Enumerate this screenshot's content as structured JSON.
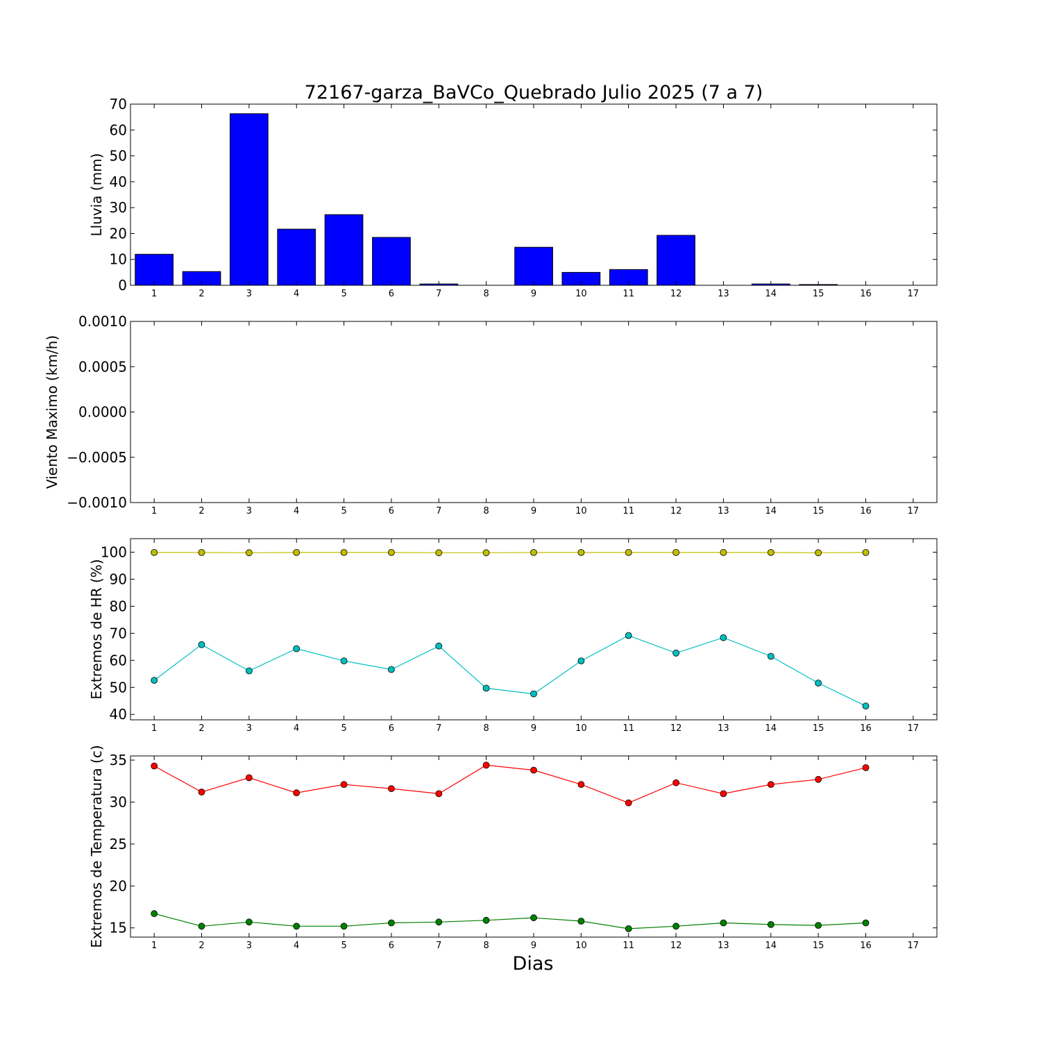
{
  "figure": {
    "title": "72167-garza_BaVCo_Quebrado Julio 2025  (7 a 7)",
    "xlabel": "Dias"
  },
  "chart_data": [
    {
      "type": "bar",
      "ylabel": "Lluvia (mm)",
      "xlim": [
        0.5,
        17.5
      ],
      "ylim": [
        0,
        70
      ],
      "yticks": [
        0,
        10,
        20,
        30,
        40,
        50,
        60,
        70
      ],
      "ytick_labels": [
        "0",
        "10",
        "20",
        "30",
        "40",
        "50",
        "60",
        "70"
      ],
      "xticks": [
        1,
        2,
        3,
        4,
        5,
        6,
        7,
        8,
        9,
        10,
        11,
        12,
        13,
        14,
        15,
        16,
        17
      ],
      "categories": [
        1,
        2,
        3,
        4,
        5,
        6,
        7,
        8,
        9,
        10,
        11,
        12,
        13,
        14,
        15,
        16
      ],
      "values": [
        12.0,
        5.3,
        66.3,
        21.7,
        27.3,
        18.5,
        0.5,
        0.0,
        14.7,
        5.0,
        6.1,
        19.3,
        0.0,
        0.5,
        0.3,
        0.0
      ],
      "color": "#0000ff",
      "grid": false
    },
    {
      "type": "line",
      "ylabel": "Viento Maximo (km/h)",
      "xlim": [
        0.5,
        17.5
      ],
      "ylim": [
        -0.001,
        0.001
      ],
      "yticks": [
        -0.001,
        -0.0005,
        0.0,
        0.0005,
        0.001
      ],
      "ytick_labels": [
        "−0.0010",
        "−0.0005",
        "0.0000",
        "0.0005",
        "0.0010"
      ],
      "xticks": [
        1,
        2,
        3,
        4,
        5,
        6,
        7,
        8,
        9,
        10,
        11,
        12,
        13,
        14,
        15,
        16,
        17
      ],
      "series": [],
      "grid": false
    },
    {
      "type": "line",
      "ylabel": "Extremos de HR (%)",
      "xlim": [
        0.5,
        17.5
      ],
      "ylim": [
        38,
        105
      ],
      "yticks": [
        40,
        50,
        60,
        70,
        80,
        90,
        100
      ],
      "ytick_labels": [
        "40",
        "50",
        "60",
        "70",
        "80",
        "90",
        "100"
      ],
      "xticks": [
        1,
        2,
        3,
        4,
        5,
        6,
        7,
        8,
        9,
        10,
        11,
        12,
        13,
        14,
        15,
        16,
        17
      ],
      "x": [
        1,
        2,
        3,
        4,
        5,
        6,
        7,
        8,
        9,
        10,
        11,
        12,
        13,
        14,
        15,
        16
      ],
      "series": [
        {
          "color": "#bfbf00",
          "values": [
            99.9,
            99.9,
            99.8,
            99.9,
            99.9,
            99.9,
            99.8,
            99.8,
            99.9,
            99.9,
            99.9,
            99.9,
            99.9,
            99.9,
            99.8,
            99.9
          ]
        },
        {
          "color": "#00bfbf",
          "values": [
            52.6,
            65.8,
            56.1,
            64.3,
            59.8,
            56.6,
            65.3,
            49.7,
            47.6,
            59.8,
            69.2,
            62.7,
            68.4,
            61.5,
            51.6,
            43.1
          ]
        }
      ],
      "grid": false
    },
    {
      "type": "line",
      "ylabel": "Extremos de Temperatura (c)",
      "xlim": [
        0.5,
        17.5
      ],
      "ylim": [
        13.9,
        35.5
      ],
      "yticks": [
        15,
        20,
        25,
        30,
        35
      ],
      "ytick_labels": [
        "15",
        "20",
        "25",
        "30",
        "35"
      ],
      "xticks": [
        1,
        2,
        3,
        4,
        5,
        6,
        7,
        8,
        9,
        10,
        11,
        12,
        13,
        14,
        15,
        16,
        17
      ],
      "x": [
        1,
        2,
        3,
        4,
        5,
        6,
        7,
        8,
        9,
        10,
        11,
        12,
        13,
        14,
        15,
        16
      ],
      "series": [
        {
          "color": "#ff0000",
          "values": [
            34.3,
            31.2,
            32.9,
            31.1,
            32.1,
            31.6,
            31.0,
            34.4,
            33.8,
            32.1,
            29.9,
            32.3,
            31.0,
            32.1,
            32.7,
            34.1
          ]
        },
        {
          "color": "#008000",
          "values": [
            16.7,
            15.2,
            15.7,
            15.2,
            15.2,
            15.6,
            15.7,
            15.9,
            16.2,
            15.8,
            14.9,
            15.2,
            15.6,
            15.4,
            15.3,
            15.6
          ]
        }
      ],
      "grid": false
    }
  ]
}
